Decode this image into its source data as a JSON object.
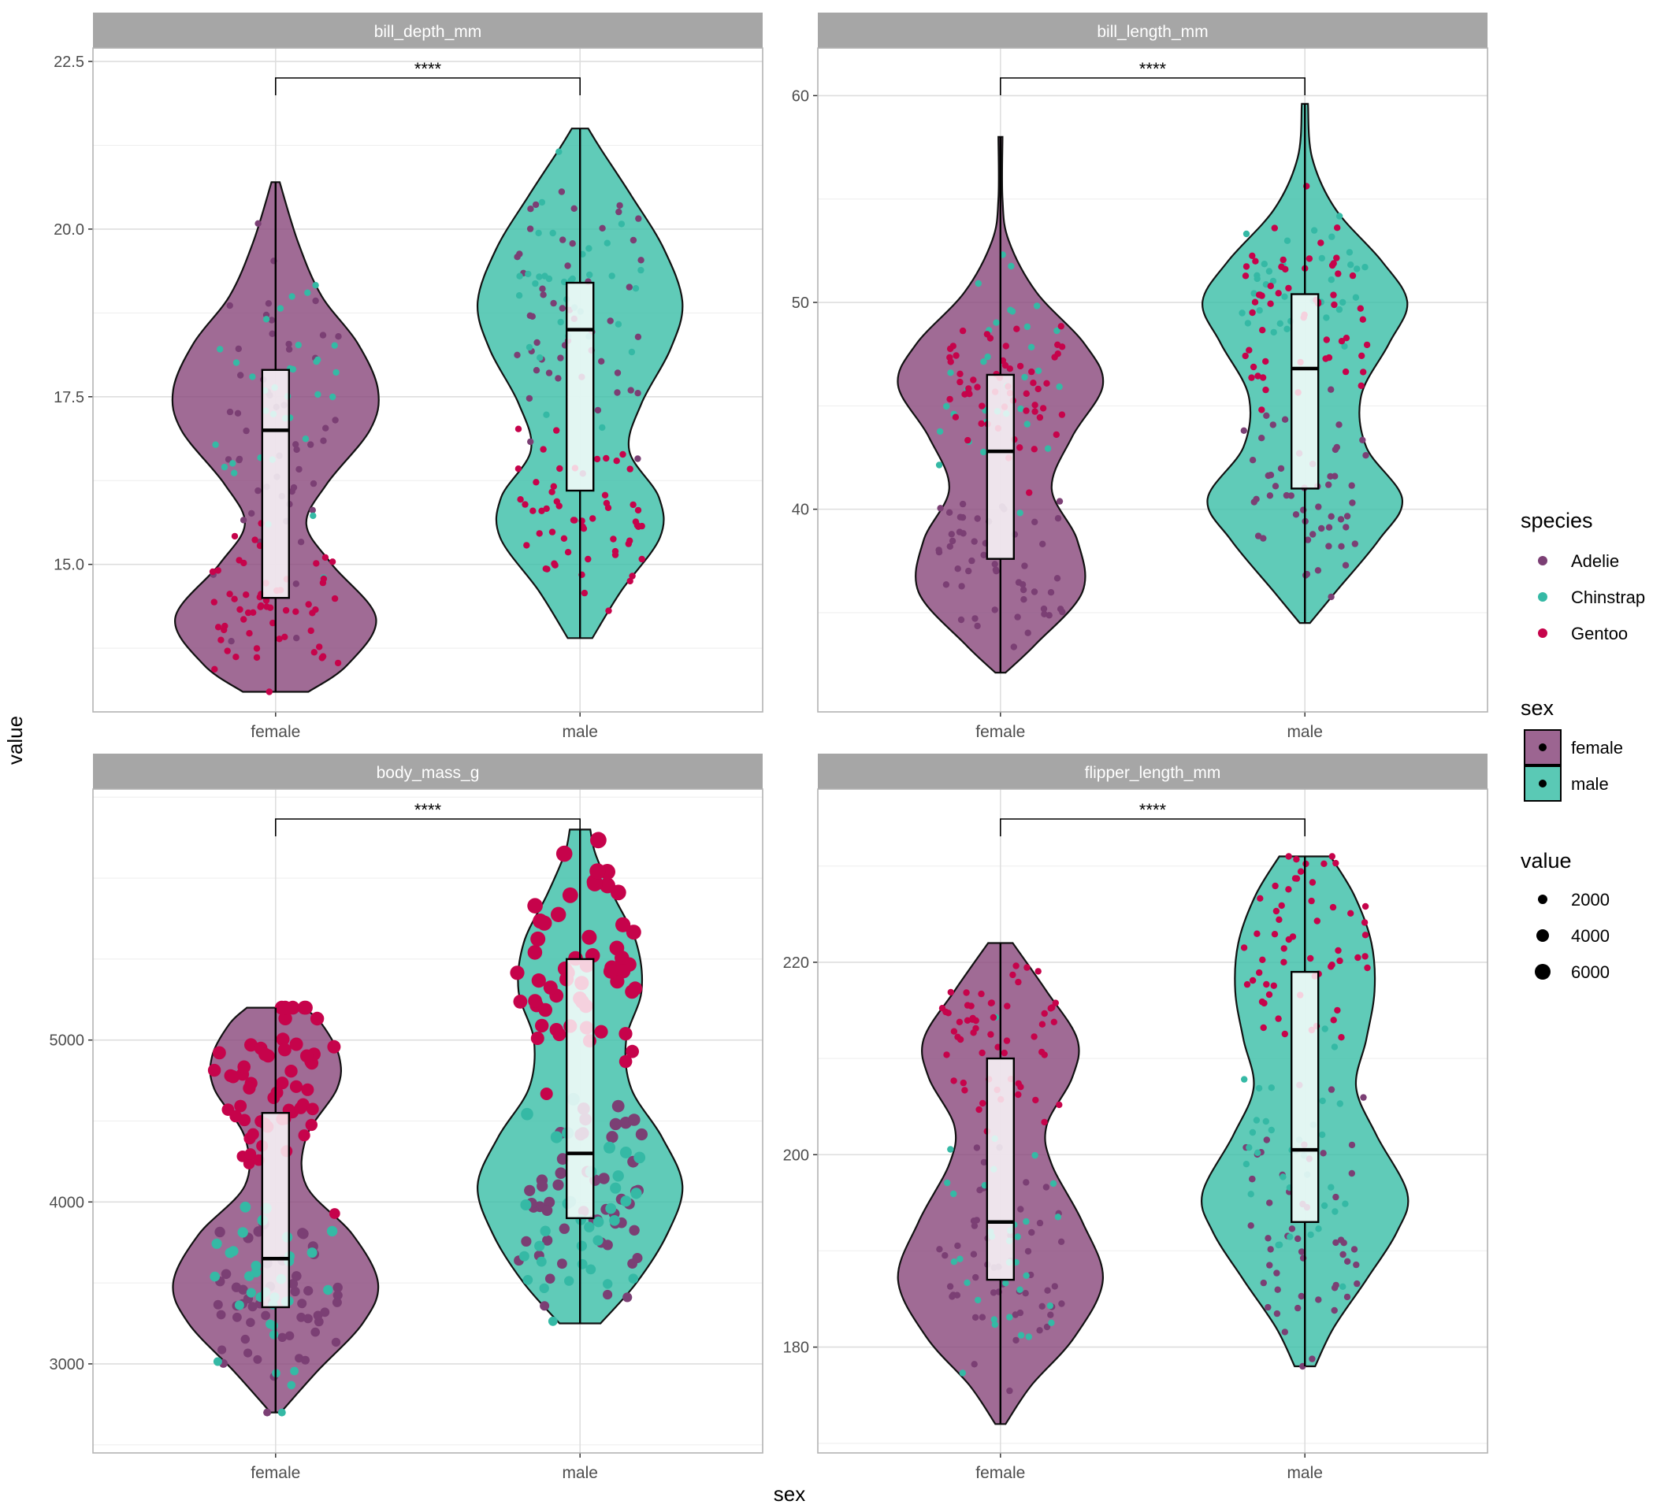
{
  "chart_data": {
    "type": "violin",
    "xlabel": "sex",
    "ylabel": "value",
    "colors": {
      "female": "#8b4a7e",
      "male": "#3dbfa8",
      "Adelie": "#7b3f74",
      "Chinstrap": "#35b9a5",
      "Gentoo": "#c6034b"
    },
    "legend": {
      "position": "right",
      "species": {
        "title": "species",
        "items": [
          "Adelie",
          "Chinstrap",
          "Gentoo"
        ]
      },
      "sex": {
        "title": "sex",
        "items": [
          "female",
          "male"
        ]
      },
      "value": {
        "title": "value",
        "items": [
          "2000",
          "4000",
          "6000"
        ]
      }
    },
    "panels": [
      {
        "strip": "bill_depth_mm",
        "significance": "****",
        "categories": [
          "female",
          "male"
        ],
        "ylim": [
          12.8,
          22.7
        ],
        "yticks": [
          15,
          17.5,
          20,
          22.5
        ],
        "ytick_labels": [
          "15.0",
          "17.5",
          "20.0",
          "22.5"
        ],
        "violins": [
          {
            "group": "female",
            "min": 13.1,
            "max": 20.7,
            "density": [
              [
                13.1,
                0.32
              ],
              [
                13.5,
                0.7
              ],
              [
                14.2,
                0.98
              ],
              [
                15.0,
                0.55
              ],
              [
                15.6,
                0.3
              ],
              [
                16.2,
                0.5
              ],
              [
                17.0,
                0.92
              ],
              [
                17.6,
                1.0
              ],
              [
                18.3,
                0.8
              ],
              [
                19.0,
                0.45
              ],
              [
                19.8,
                0.22
              ],
              [
                20.7,
                0.04
              ]
            ]
          },
          {
            "group": "male",
            "min": 13.9,
            "max": 21.5,
            "density": [
              [
                13.9,
                0.12
              ],
              [
                14.6,
                0.4
              ],
              [
                15.4,
                0.78
              ],
              [
                16.0,
                0.77
              ],
              [
                16.7,
                0.48
              ],
              [
                17.4,
                0.6
              ],
              [
                18.2,
                0.88
              ],
              [
                18.9,
                1.0
              ],
              [
                19.7,
                0.82
              ],
              [
                20.5,
                0.5
              ],
              [
                21.2,
                0.2
              ],
              [
                21.5,
                0.08
              ]
            ]
          }
        ],
        "boxes": [
          {
            "group": "female",
            "q1": 14.5,
            "median": 17.0,
            "q3": 17.9,
            "whisker_low": 13.1,
            "whisker_high": 20.7
          },
          {
            "group": "male",
            "q1": 16.1,
            "median": 18.5,
            "q3": 19.2,
            "whisker_low": 13.9,
            "whisker_high": 21.5
          }
        ],
        "points_by_species": {
          "female": {
            "Adelie": [
              52,
              17.0,
              1.3
            ],
            "Chinstrap": [
              34,
              17.6,
              0.8
            ],
            "Gentoo": [
              58,
              14.3,
              0.55
            ]
          },
          "male": {
            "Adelie": [
              52,
              19.0,
              1.0
            ],
            "Chinstrap": [
              34,
              19.3,
              0.8
            ],
            "Gentoo": [
              58,
              15.8,
              0.7
            ]
          }
        }
      },
      {
        "strip": "bill_length_mm",
        "significance": "****",
        "categories": [
          "female",
          "male"
        ],
        "ylim": [
          30.2,
          62.3
        ],
        "yticks": [
          40,
          50,
          60
        ],
        "ytick_labels": [
          "40",
          "50",
          "60"
        ],
        "violins": [
          {
            "group": "female",
            "min": 32.1,
            "max": 58.0,
            "density": [
              [
                32.1,
                0.05
              ],
              [
                33.5,
                0.35
              ],
              [
                36.0,
                0.8
              ],
              [
                38.5,
                0.75
              ],
              [
                41.0,
                0.5
              ],
              [
                43.5,
                0.7
              ],
              [
                46.0,
                1.0
              ],
              [
                48.0,
                0.82
              ],
              [
                50.5,
                0.35
              ],
              [
                53.0,
                0.08
              ],
              [
                55.0,
                0.02
              ],
              [
                58.0,
                0.02
              ]
            ]
          },
          {
            "group": "male",
            "min": 34.5,
            "max": 59.6,
            "density": [
              [
                34.5,
                0.05
              ],
              [
                36.0,
                0.3
              ],
              [
                38.5,
                0.72
              ],
              [
                40.5,
                0.95
              ],
              [
                43.0,
                0.6
              ],
              [
                45.5,
                0.55
              ],
              [
                48.0,
                0.82
              ],
              [
                50.0,
                1.0
              ],
              [
                52.0,
                0.75
              ],
              [
                54.5,
                0.3
              ],
              [
                57.0,
                0.07
              ],
              [
                59.6,
                0.03
              ]
            ]
          }
        ],
        "boxes": [
          {
            "group": "female",
            "q1": 37.6,
            "median": 42.8,
            "q3": 46.5,
            "whisker_low": 32.1,
            "whisker_high": 58.0
          },
          {
            "group": "male",
            "q1": 41.0,
            "median": 46.8,
            "q3": 50.4,
            "whisker_low": 34.5,
            "whisker_high": 59.6
          }
        ],
        "points_by_species": {
          "female": {
            "Adelie": [
              52,
              37.2,
              2.0
            ],
            "Chinstrap": [
              34,
              46.6,
              2.6
            ],
            "Gentoo": [
              58,
              45.6,
              2.0
            ]
          },
          "male": {
            "Adelie": [
              52,
              40.4,
              2.2
            ],
            "Chinstrap": [
              34,
              51.1,
              1.5
            ],
            "Gentoo": [
              58,
              49.5,
              2.6
            ]
          }
        }
      },
      {
        "strip": "body_mass_g",
        "significance": "****",
        "categories": [
          "female",
          "male"
        ],
        "ylim": [
          2450,
          6550
        ],
        "yticks": [
          3000,
          4000,
          5000
        ],
        "ytick_labels": [
          "3000",
          "4000",
          "5000"
        ],
        "violins": [
          {
            "group": "female",
            "min": 2700,
            "max": 5200,
            "density": [
              [
                2700,
                0.05
              ],
              [
                2950,
                0.4
              ],
              [
                3250,
                0.85
              ],
              [
                3500,
                1.0
              ],
              [
                3800,
                0.75
              ],
              [
                4100,
                0.3
              ],
              [
                4400,
                0.3
              ],
              [
                4700,
                0.6
              ],
              [
                4900,
                0.62
              ],
              [
                5100,
                0.45
              ],
              [
                5200,
                0.28
              ]
            ]
          },
          {
            "group": "male",
            "min": 3250,
            "max": 6300,
            "density": [
              [
                3250,
                0.2
              ],
              [
                3500,
                0.55
              ],
              [
                3800,
                0.85
              ],
              [
                4100,
                1.0
              ],
              [
                4400,
                0.8
              ],
              [
                4700,
                0.5
              ],
              [
                5000,
                0.45
              ],
              [
                5300,
                0.6
              ],
              [
                5600,
                0.55
              ],
              [
                5900,
                0.32
              ],
              [
                6150,
                0.15
              ],
              [
                6300,
                0.1
              ]
            ]
          }
        ],
        "boxes": [
          {
            "group": "female",
            "q1": 3350,
            "median": 3650,
            "q3": 4550,
            "whisker_low": 2700,
            "whisker_high": 5200
          },
          {
            "group": "male",
            "q1": 3900,
            "median": 4300,
            "q3": 5500,
            "whisker_low": 3250,
            "whisker_high": 6300
          }
        ],
        "points_by_species": {
          "female": {
            "Adelie": [
              52,
              3370,
              260
            ],
            "Chinstrap": [
              34,
              3530,
              280
            ],
            "Gentoo": [
              58,
              4680,
              280
            ]
          },
          "male": {
            "Adelie": [
              52,
              4040,
              330
            ],
            "Chinstrap": [
              34,
              3940,
              360
            ],
            "Gentoo": [
              58,
              5480,
              310
            ]
          }
        }
      },
      {
        "strip": "flipper_length_mm",
        "significance": "****",
        "categories": [
          "female",
          "male"
        ],
        "ylim": [
          169,
          238
        ],
        "yticks": [
          180,
          200,
          220
        ],
        "ytick_labels": [
          "180",
          "200",
          "220"
        ],
        "violins": [
          {
            "group": "female",
            "min": 172,
            "max": 222,
            "density": [
              [
                172,
                0.05
              ],
              [
                176,
                0.3
              ],
              [
                181,
                0.72
              ],
              [
                187,
                1.0
              ],
              [
                193,
                0.8
              ],
              [
                199,
                0.5
              ],
              [
                203,
                0.45
              ],
              [
                208,
                0.7
              ],
              [
                212,
                0.75
              ],
              [
                217,
                0.45
              ],
              [
                222,
                0.12
              ]
            ]
          },
          {
            "group": "male",
            "min": 178,
            "max": 231,
            "density": [
              [
                178,
                0.1
              ],
              [
                182,
                0.28
              ],
              [
                187,
                0.6
              ],
              [
                192,
                0.9
              ],
              [
                196,
                1.0
              ],
              [
                202,
                0.7
              ],
              [
                207,
                0.5
              ],
              [
                212,
                0.6
              ],
              [
                217,
                0.68
              ],
              [
                222,
                0.65
              ],
              [
                227,
                0.48
              ],
              [
                231,
                0.25
              ]
            ]
          }
        ],
        "boxes": [
          {
            "group": "female",
            "q1": 187,
            "median": 193,
            "q3": 210,
            "whisker_low": 172,
            "whisker_high": 222
          },
          {
            "group": "male",
            "q1": 193,
            "median": 200.5,
            "q3": 219,
            "whisker_low": 178,
            "whisker_high": 231
          }
        ],
        "points_by_species": {
          "female": {
            "Adelie": [
              52,
              188,
              5.5
            ],
            "Chinstrap": [
              34,
              191.7,
              5.8
            ],
            "Gentoo": [
              58,
              212.7,
              3.9
            ]
          },
          "male": {
            "Adelie": [
              52,
              192.4,
              6.6
            ],
            "Chinstrap": [
              34,
              199.9,
              5.9
            ],
            "Gentoo": [
              58,
              221.5,
              5.7
            ]
          }
        }
      }
    ]
  }
}
